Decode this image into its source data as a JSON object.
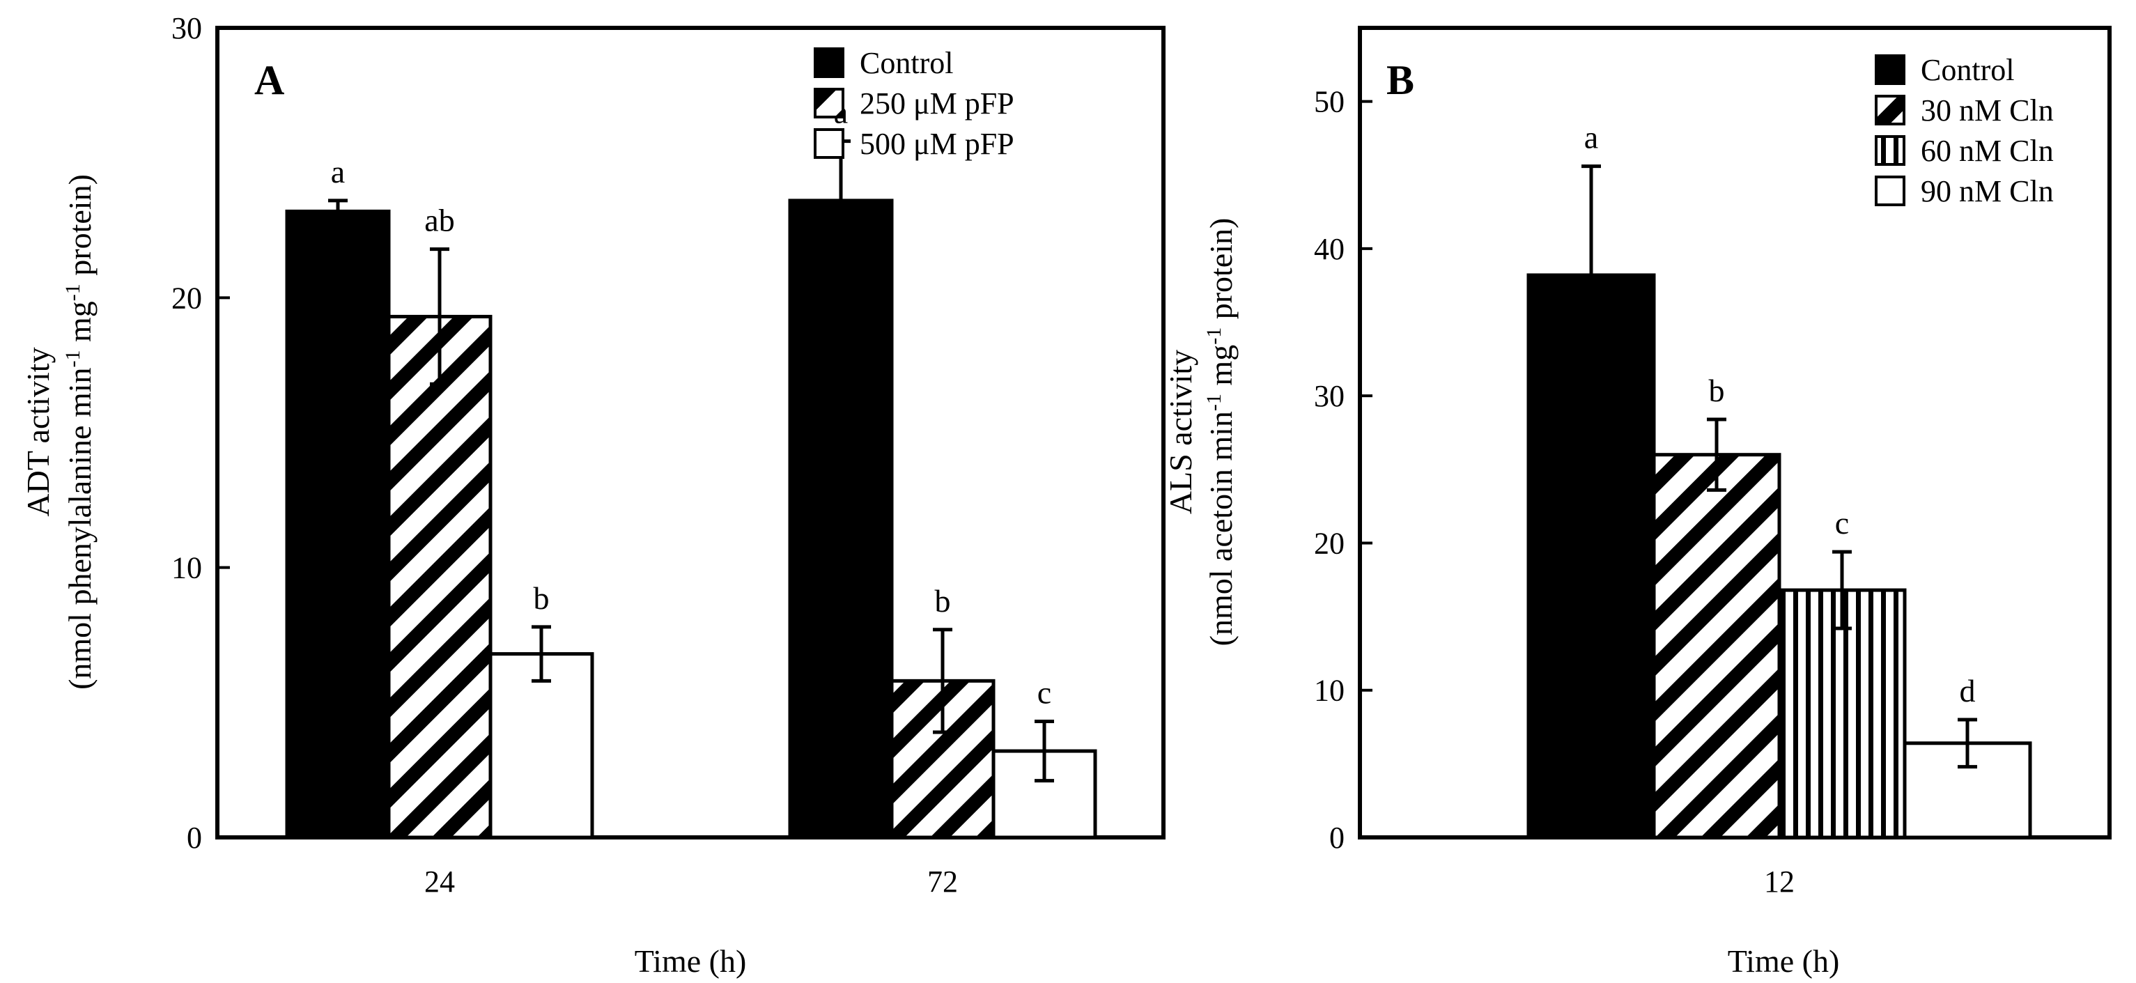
{
  "chart_data": [
    {
      "type": "bar",
      "panel_label": "A",
      "xlabel": "Time (h)",
      "ylabel_line1": "ADT activity",
      "ylabel_line2": "(nmol phenylalanine min",
      "ylabel_sup1": "-1",
      "ylabel_mid": " mg",
      "ylabel_sup2": "-1",
      "ylabel_end": " protein)",
      "ylim": [
        0,
        30
      ],
      "yticks": [
        "0",
        "10",
        "20",
        "30"
      ],
      "categories": [
        "24",
        "72"
      ],
      "legend_position": "top-right",
      "series": [
        {
          "name": "Control",
          "pattern": "solid",
          "values": [
            23.2,
            23.6
          ],
          "errors": [
            0.4,
            2.2
          ],
          "letters": [
            "a",
            "a"
          ]
        },
        {
          "name": "250 μM pFP",
          "pattern": "diagonal",
          "values": [
            19.3,
            5.8
          ],
          "errors": [
            2.5,
            1.9
          ],
          "letters": [
            "ab",
            "b"
          ]
        },
        {
          "name": "500 μM pFP",
          "pattern": "open",
          "values": [
            6.8,
            3.2
          ],
          "errors": [
            1.0,
            1.1
          ],
          "letters": [
            "b",
            "c"
          ]
        }
      ]
    },
    {
      "type": "bar",
      "panel_label": "B",
      "xlabel": "Time (h)",
      "ylabel_line1": "ALS activity",
      "ylabel_line2": "(nmol acetoin min",
      "ylabel_sup1": "-1",
      "ylabel_mid": " mg",
      "ylabel_sup2": "-1",
      "ylabel_end": " protein)",
      "ylim": [
        0,
        55
      ],
      "yticks": [
        "0",
        "10",
        "20",
        "30",
        "40",
        "50"
      ],
      "categories": [
        "12"
      ],
      "legend_position": "top-right",
      "series": [
        {
          "name": "Control",
          "pattern": "solid",
          "values": [
            38.2
          ],
          "errors": [
            7.4
          ],
          "letters": [
            "a"
          ]
        },
        {
          "name": "30 nM Cln",
          "pattern": "diagonal",
          "values": [
            26.0
          ],
          "errors": [
            2.4
          ],
          "letters": [
            "b"
          ]
        },
        {
          "name": "60 nM Cln",
          "pattern": "vertical",
          "values": [
            16.8
          ],
          "errors": [
            2.6
          ],
          "letters": [
            "c"
          ]
        },
        {
          "name": "90 nM Cln",
          "pattern": "open",
          "values": [
            6.4
          ],
          "errors": [
            1.6
          ],
          "letters": [
            "d"
          ]
        }
      ]
    }
  ]
}
